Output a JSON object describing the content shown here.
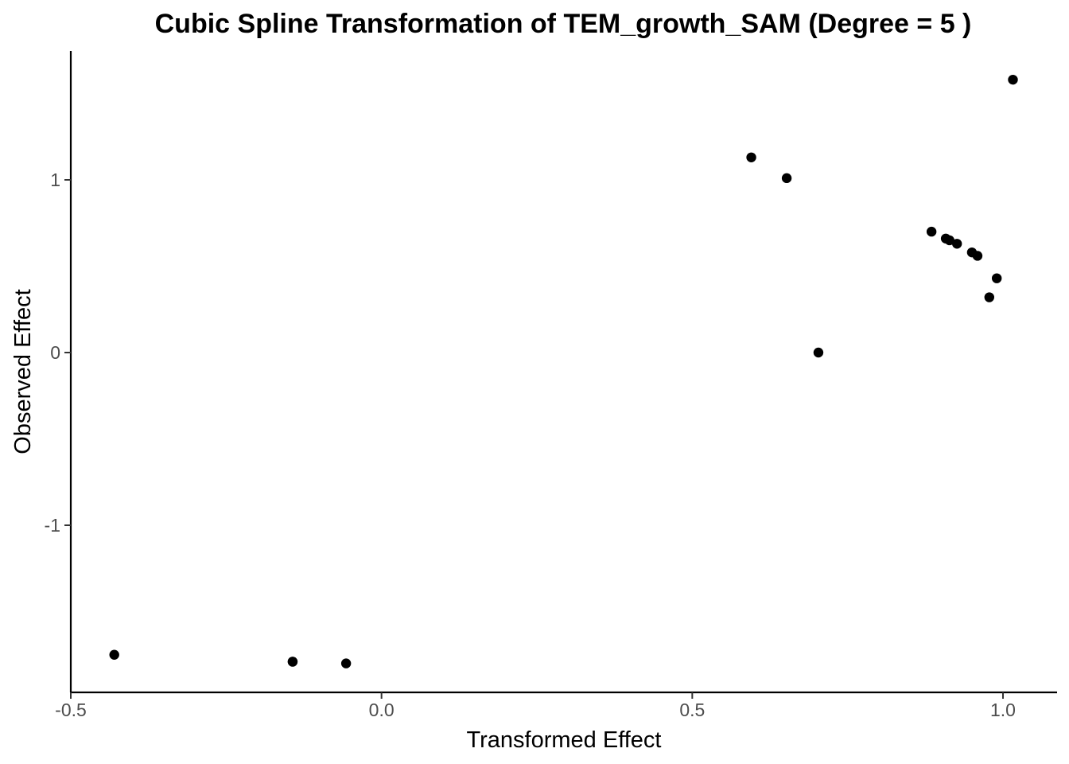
{
  "chart_data": {
    "type": "scatter",
    "title": "Cubic Spline Transformation of TEM_growth_SAM (Degree = 5 )",
    "xlabel": "Transformed Effect",
    "ylabel": "Observed Effect",
    "xlim": [
      -0.5,
      1.08
    ],
    "ylim": [
      -1.97,
      1.75
    ],
    "x_ticks": [
      -0.5,
      0.0,
      0.5,
      1.0
    ],
    "x_tick_labels": [
      "-0.5",
      "0.0",
      "0.5",
      "1.0"
    ],
    "y_ticks": [
      -1,
      0,
      1
    ],
    "y_tick_labels": [
      "-1",
      "0",
      "1"
    ],
    "grid": false,
    "legend": "none",
    "point_color": "#000000",
    "points": [
      {
        "x": -0.43,
        "y": -1.75
      },
      {
        "x": -0.143,
        "y": -1.79
      },
      {
        "x": -0.143,
        "y": -1.79
      },
      {
        "x": -0.057,
        "y": -1.8
      },
      {
        "x": 0.595,
        "y": 1.13
      },
      {
        "x": 0.652,
        "y": 1.01
      },
      {
        "x": 0.703,
        "y": 0.0
      },
      {
        "x": 0.885,
        "y": 0.7
      },
      {
        "x": 0.908,
        "y": 0.66
      },
      {
        "x": 0.914,
        "y": 0.65
      },
      {
        "x": 0.926,
        "y": 0.63
      },
      {
        "x": 0.95,
        "y": 0.58
      },
      {
        "x": 0.959,
        "y": 0.56
      },
      {
        "x": 0.978,
        "y": 0.32
      },
      {
        "x": 0.99,
        "y": 0.43
      },
      {
        "x": 1.016,
        "y": 1.58
      }
    ]
  }
}
